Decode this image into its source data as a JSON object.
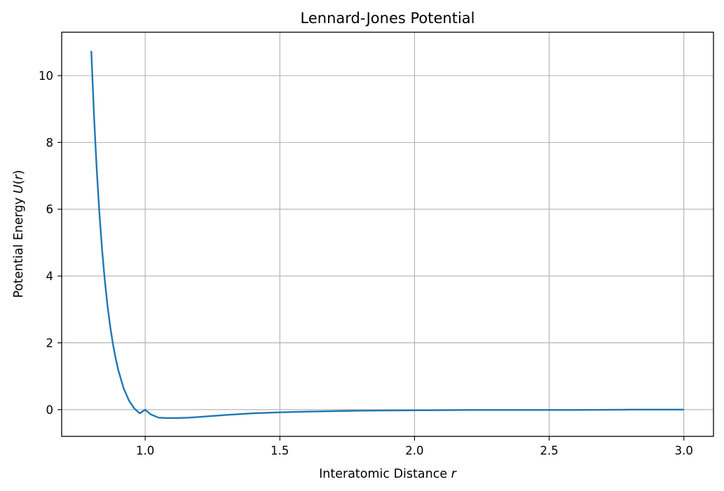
{
  "chart_data": {
    "type": "line",
    "title": "Lennard-Jones Potential",
    "xlabel": {
      "text": "Interatomic Distance ",
      "var": "r"
    },
    "ylabel": {
      "text": "Potential Energy ",
      "var": "U",
      "open": "(",
      "arg": "r",
      "close": ")"
    },
    "xlim": [
      0.69,
      3.11
    ],
    "ylim": [
      -0.8,
      11.3
    ],
    "xticks": [
      1.0,
      1.5,
      2.0,
      2.5,
      3.0
    ],
    "xtick_labels": [
      "1.0",
      "1.5",
      "2.0",
      "2.5",
      "3.0"
    ],
    "yticks": [
      0,
      2,
      4,
      6,
      8,
      10
    ],
    "ytick_labels": [
      "0",
      "2",
      "4",
      "6",
      "8",
      "10"
    ],
    "grid": true,
    "series": [
      {
        "color": "#1f77b4",
        "x": [
          0.8,
          0.81,
          0.82,
          0.83,
          0.84,
          0.85,
          0.86,
          0.87,
          0.88,
          0.89,
          0.9,
          0.92,
          0.94,
          0.96,
          0.98,
          1.0,
          1.02,
          1.05,
          1.08,
          1.12,
          1.16,
          1.2,
          1.3,
          1.4,
          1.5,
          1.6,
          1.8,
          2.0,
          2.2,
          2.4,
          2.6,
          2.8,
          3.0
        ],
        "y": [
          10.74,
          8.81,
          7.21,
          5.89,
          4.79,
          3.88,
          3.13,
          2.5,
          1.98,
          1.55,
          1.19,
          0.64,
          0.27,
          0.03,
          -0.11,
          0.0,
          -0.14,
          -0.24,
          -0.25,
          -0.25,
          -0.24,
          -0.22,
          -0.16,
          -0.11,
          -0.08,
          -0.06,
          -0.03,
          -0.02,
          -0.01,
          -0.01,
          -0.01,
          0.0,
          0.0
        ]
      }
    ]
  }
}
